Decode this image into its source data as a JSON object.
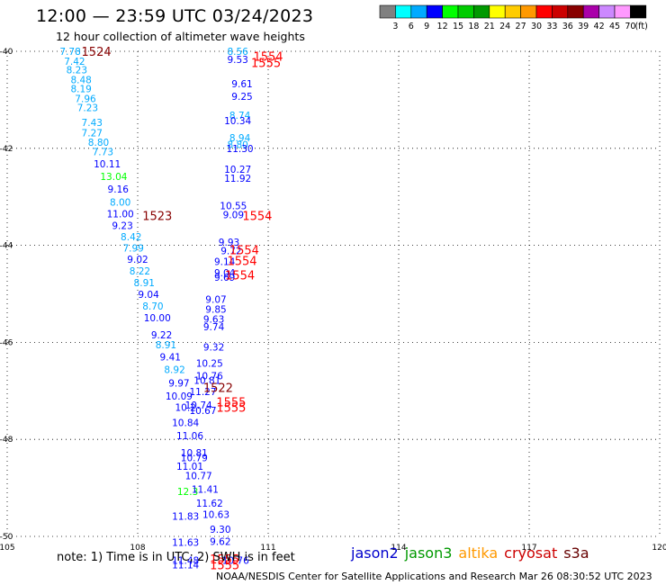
{
  "title": "12:00 — 23:59 UTC 03/24/2023",
  "subtitle": "12 hour collection of altimeter wave heights",
  "note": "note:  1) Time is in UTC;  2) SWH is in feet",
  "credit": "NOAA/NESDIS Center for Satellite Applications and Research    Mar 26 08:30:52 UTC 2023",
  "missions": [
    {
      "name": "jason2",
      "color": "#0000cc"
    },
    {
      "name": "jason3",
      "color": "#009900"
    },
    {
      "name": "altika",
      "color": "#ff9900"
    },
    {
      "name": "cryosat",
      "color": "#cc0000"
    },
    {
      "name": "s3a",
      "color": "#660000"
    }
  ],
  "scale": {
    "unit": "(ft)",
    "colors": [
      "#808080",
      "#00ffff",
      "#00aaff",
      "#0000ff",
      "#00ff00",
      "#00cc00",
      "#009900",
      "#ffff00",
      "#ffcc00",
      "#ff9900",
      "#ff0000",
      "#cc0000",
      "#880000",
      "#aa00aa",
      "#cc88ff",
      "#ff99ff",
      "#000000"
    ],
    "labels": [
      "3",
      "6",
      "9",
      "12",
      "15",
      "18",
      "21",
      "24",
      "27",
      "30",
      "33",
      "36",
      "39",
      "42",
      "45",
      "70"
    ]
  },
  "chart_data": {
    "type": "scatter",
    "title": "12:00 — 23:59 UTC 03/24/2023",
    "subtitle": "12 hour collection of altimeter wave heights",
    "xlim": [
      105,
      120
    ],
    "ylim": [
      -50,
      -40
    ],
    "x_ticks": [
      "105",
      "108",
      "111",
      "114",
      "117",
      "120"
    ],
    "y_ticks": [
      "-40",
      "-42",
      "-44",
      "-46",
      "-48",
      "-50"
    ],
    "grid": true,
    "wave_heights": [
      {
        "x": 106.45,
        "y": -40.0,
        "v": "7.78",
        "c": "#00aaff"
      },
      {
        "x": 106.55,
        "y": -40.2,
        "v": "7.42",
        "c": "#00aaff"
      },
      {
        "x": 106.6,
        "y": -40.38,
        "v": "8.23",
        "c": "#00aaff"
      },
      {
        "x": 106.7,
        "y": -40.58,
        "v": "8.48",
        "c": "#00aaff"
      },
      {
        "x": 106.7,
        "y": -40.77,
        "v": "8.19",
        "c": "#00aaff"
      },
      {
        "x": 106.8,
        "y": -40.97,
        "v": "7.96",
        "c": "#00aaff"
      },
      {
        "x": 106.85,
        "y": -41.16,
        "v": "7.23",
        "c": "#00aaff"
      },
      {
        "x": 106.95,
        "y": -41.47,
        "v": "7.43",
        "c": "#00aaff"
      },
      {
        "x": 106.95,
        "y": -41.68,
        "v": "7.27",
        "c": "#00aaff"
      },
      {
        "x": 107.1,
        "y": -41.87,
        "v": "8.80",
        "c": "#00aaff"
      },
      {
        "x": 107.2,
        "y": -42.07,
        "v": "7.73",
        "c": "#00aaff"
      },
      {
        "x": 107.3,
        "y": -42.32,
        "v": "10.11",
        "c": "#0000ff"
      },
      {
        "x": 107.45,
        "y": -42.58,
        "v": "13.04",
        "c": "#00ff00"
      },
      {
        "x": 107.55,
        "y": -42.84,
        "v": "9.16",
        "c": "#0000ff"
      },
      {
        "x": 107.6,
        "y": -43.11,
        "v": "8.00",
        "c": "#00aaff"
      },
      {
        "x": 107.6,
        "y": -43.35,
        "v": "11.00",
        "c": "#0000ff"
      },
      {
        "x": 107.65,
        "y": -43.59,
        "v": "9.23",
        "c": "#0000ff"
      },
      {
        "x": 107.85,
        "y": -43.82,
        "v": "8.42",
        "c": "#00aaff"
      },
      {
        "x": 107.9,
        "y": -44.05,
        "v": "7.99",
        "c": "#00aaff"
      },
      {
        "x": 108.0,
        "y": -44.29,
        "v": "9.02",
        "c": "#0000ff"
      },
      {
        "x": 108.05,
        "y": -44.53,
        "v": "8.22",
        "c": "#00aaff"
      },
      {
        "x": 108.15,
        "y": -44.77,
        "v": "8.91",
        "c": "#00aaff"
      },
      {
        "x": 108.25,
        "y": -45.01,
        "v": "9.04",
        "c": "#0000ff"
      },
      {
        "x": 108.35,
        "y": -45.25,
        "v": "8.70",
        "c": "#00aaff"
      },
      {
        "x": 108.45,
        "y": -45.49,
        "v": "10.00",
        "c": "#0000ff"
      },
      {
        "x": 108.55,
        "y": -45.84,
        "v": "9.22",
        "c": "#0000ff"
      },
      {
        "x": 108.65,
        "y": -46.05,
        "v": "8.91",
        "c": "#00aaff"
      },
      {
        "x": 108.75,
        "y": -46.3,
        "v": "9.41",
        "c": "#0000ff"
      },
      {
        "x": 108.85,
        "y": -46.56,
        "v": "8.92",
        "c": "#00aaff"
      },
      {
        "x": 108.95,
        "y": -46.84,
        "v": "9.97",
        "c": "#0000ff"
      },
      {
        "x": 108.95,
        "y": -47.11,
        "v": "10.09",
        "c": "#0000ff"
      },
      {
        "x": 109.1,
        "y": -47.34,
        "v": "10.2",
        "c": "#0000ff"
      },
      {
        "x": 109.1,
        "y": -47.65,
        "v": "10.84",
        "c": "#0000ff"
      },
      {
        "x": 109.2,
        "y": -47.92,
        "v": "11.06",
        "c": "#0000ff"
      },
      {
        "x": 109.3,
        "y": -48.27,
        "v": "10.81",
        "c": "#0000ff"
      },
      {
        "x": 109.3,
        "y": -48.38,
        "v": "10.79",
        "c": "#0000ff"
      },
      {
        "x": 109.2,
        "y": -48.55,
        "v": "11.01",
        "c": "#0000ff"
      },
      {
        "x": 109.4,
        "y": -48.75,
        "v": "10.77",
        "c": "#0000ff"
      },
      {
        "x": 109.15,
        "y": -49.07,
        "v": "12.3",
        "c": "#00ff00"
      },
      {
        "x": 109.55,
        "y": -49.03,
        "v": "11.41",
        "c": "#0000ff"
      },
      {
        "x": 109.65,
        "y": -49.31,
        "v": "11.62",
        "c": "#0000ff"
      },
      {
        "x": 109.1,
        "y": -49.58,
        "v": "11.83",
        "c": "#0000ff"
      },
      {
        "x": 109.8,
        "y": -49.55,
        "v": "10.63",
        "c": "#0000ff"
      },
      {
        "x": 109.9,
        "y": -49.85,
        "v": "9.30",
        "c": "#0000ff"
      },
      {
        "x": 109.1,
        "y": -50.12,
        "v": "11.63",
        "c": "#0000ff"
      },
      {
        "x": 109.9,
        "y": -50.1,
        "v": "9.62",
        "c": "#0000ff"
      },
      {
        "x": 109.1,
        "y": -50.49,
        "v": "11.48",
        "c": "#0000ff"
      },
      {
        "x": 109.1,
        "y": -50.58,
        "v": "11.14",
        "c": "#0000ff"
      },
      {
        "x": 110.25,
        "y": -50.49,
        "v": "10.76",
        "c": "#0000ff"
      },
      {
        "x": 110.3,
        "y": -40.0,
        "v": "8.56",
        "c": "#00aaff"
      },
      {
        "x": 110.3,
        "y": -40.17,
        "v": "9.53",
        "c": "#0000ff"
      },
      {
        "x": 110.4,
        "y": -40.67,
        "v": "9.61",
        "c": "#0000ff"
      },
      {
        "x": 110.4,
        "y": -40.93,
        "v": "9.25",
        "c": "#0000ff"
      },
      {
        "x": 110.35,
        "y": -41.32,
        "v": "8.74",
        "c": "#00aaff"
      },
      {
        "x": 110.3,
        "y": -41.43,
        "v": "10.34",
        "c": "#0000ff"
      },
      {
        "x": 110.35,
        "y": -41.78,
        "v": "8.94",
        "c": "#00aaff"
      },
      {
        "x": 110.3,
        "y": -41.92,
        "v": "8.80",
        "c": "#00aaff"
      },
      {
        "x": 110.35,
        "y": -42.0,
        "v": "11.30",
        "c": "#0000ff"
      },
      {
        "x": 110.3,
        "y": -42.43,
        "v": "10.27",
        "c": "#0000ff"
      },
      {
        "x": 110.3,
        "y": -42.62,
        "v": "11.92",
        "c": "#0000ff"
      },
      {
        "x": 110.2,
        "y": -43.18,
        "v": "10.55",
        "c": "#0000ff"
      },
      {
        "x": 110.2,
        "y": -43.37,
        "v": "9.09",
        "c": "#0000ff"
      },
      {
        "x": 110.1,
        "y": -43.93,
        "v": "9.93",
        "c": "#0000ff"
      },
      {
        "x": 110.15,
        "y": -44.11,
        "v": "9.72",
        "c": "#0000ff"
      },
      {
        "x": 110.0,
        "y": -44.33,
        "v": "9.14",
        "c": "#0000ff"
      },
      {
        "x": 110.0,
        "y": -44.56,
        "v": "9.04",
        "c": "#0000ff"
      },
      {
        "x": 110.0,
        "y": -44.66,
        "v": "9.69",
        "c": "#0000ff"
      },
      {
        "x": 109.8,
        "y": -45.11,
        "v": "9.07",
        "c": "#0000ff"
      },
      {
        "x": 109.8,
        "y": -45.32,
        "v": "9.85",
        "c": "#0000ff"
      },
      {
        "x": 109.75,
        "y": -45.52,
        "v": "9.63",
        "c": "#0000ff"
      },
      {
        "x": 109.75,
        "y": -45.68,
        "v": "9.74",
        "c": "#0000ff"
      },
      {
        "x": 109.75,
        "y": -46.09,
        "v": "9.32",
        "c": "#0000ff"
      },
      {
        "x": 109.65,
        "y": -46.43,
        "v": "10.25",
        "c": "#0000ff"
      },
      {
        "x": 109.65,
        "y": -46.69,
        "v": "10.76",
        "c": "#0000ff"
      },
      {
        "x": 109.6,
        "y": -46.78,
        "v": "10.81",
        "c": "#0000ff"
      },
      {
        "x": 109.5,
        "y": -47.01,
        "v": "11.27",
        "c": "#0000ff"
      },
      {
        "x": 109.4,
        "y": -47.29,
        "v": "10.74",
        "c": "#0000ff"
      },
      {
        "x": 109.5,
        "y": -47.4,
        "v": "10.67",
        "c": "#0000ff"
      }
    ],
    "pass_times": [
      {
        "x": 107.05,
        "y": -40.0,
        "t": "1524",
        "c": "#880000"
      },
      {
        "x": 108.45,
        "y": -43.39,
        "t": "1523",
        "c": "#880000"
      },
      {
        "x": 109.85,
        "y": -46.93,
        "t": "1522",
        "c": "#880000"
      },
      {
        "x": 111.0,
        "y": -40.1,
        "t": "1554",
        "c": "#ff0000"
      },
      {
        "x": 110.95,
        "y": -40.23,
        "t": "1555",
        "c": "#ff0000"
      },
      {
        "x": 110.75,
        "y": -43.39,
        "t": "1554",
        "c": "#ff0000"
      },
      {
        "x": 110.45,
        "y": -44.09,
        "t": "1554",
        "c": "#ff0000"
      },
      {
        "x": 110.4,
        "y": -44.31,
        "t": "1554",
        "c": "#ff0000"
      },
      {
        "x": 110.35,
        "y": -44.61,
        "t": "1554",
        "c": "#ff0000"
      },
      {
        "x": 110.15,
        "y": -47.23,
        "t": "1555",
        "c": "#ff0000"
      },
      {
        "x": 110.15,
        "y": -47.34,
        "t": "1555",
        "c": "#ff0000"
      },
      {
        "x": 110.0,
        "y": -50.46,
        "t": "1555",
        "c": "#ff0000"
      },
      {
        "x": 110.0,
        "y": -50.58,
        "t": "1555",
        "c": "#ff0000"
      }
    ]
  }
}
